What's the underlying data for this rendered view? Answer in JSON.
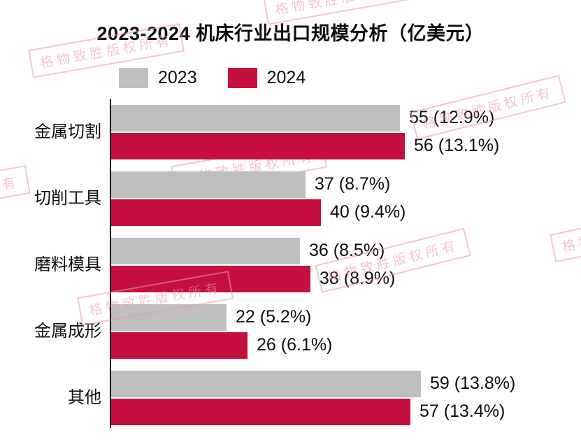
{
  "title": "2023-2024 机床行业出口规模分析（亿美元）",
  "watermark_text": "格物致胜版权所有",
  "colors": {
    "series_2023": "#bfbfbf",
    "series_2024": "#c50f3c",
    "watermark_pink": "#e89aab",
    "axis": "#000000"
  },
  "legend": {
    "items": [
      {
        "label": "2023",
        "color": "#bfbfbf"
      },
      {
        "label": "2024",
        "color": "#c50f3c"
      }
    ]
  },
  "chart_data": {
    "type": "bar",
    "orientation": "horizontal",
    "title": "2023-2024 机床行业出口规模分析（亿美元）",
    "xlabel": "",
    "ylabel": "",
    "xlim": [
      0,
      62
    ],
    "grid": false,
    "legend_position": "top-left",
    "categories": [
      "金属切割",
      "切削工具",
      "磨料模具",
      "金属成形",
      "其他"
    ],
    "series": [
      {
        "name": "2023",
        "color": "#bfbfbf",
        "values": [
          55,
          37,
          36,
          22,
          59
        ],
        "data_labels": [
          "55 (12.9%)",
          "37 (8.7%)",
          "36 (8.5%)",
          "22 (5.2%)",
          "59 (13.8%)"
        ]
      },
      {
        "name": "2024",
        "color": "#c50f3c",
        "values": [
          56,
          40,
          38,
          26,
          57
        ],
        "data_labels": [
          "56 (13.1%)",
          "40 (9.4%)",
          "38 (8.9%)",
          "26 (6.1%)",
          "57 (13.4%)"
        ]
      }
    ]
  }
}
